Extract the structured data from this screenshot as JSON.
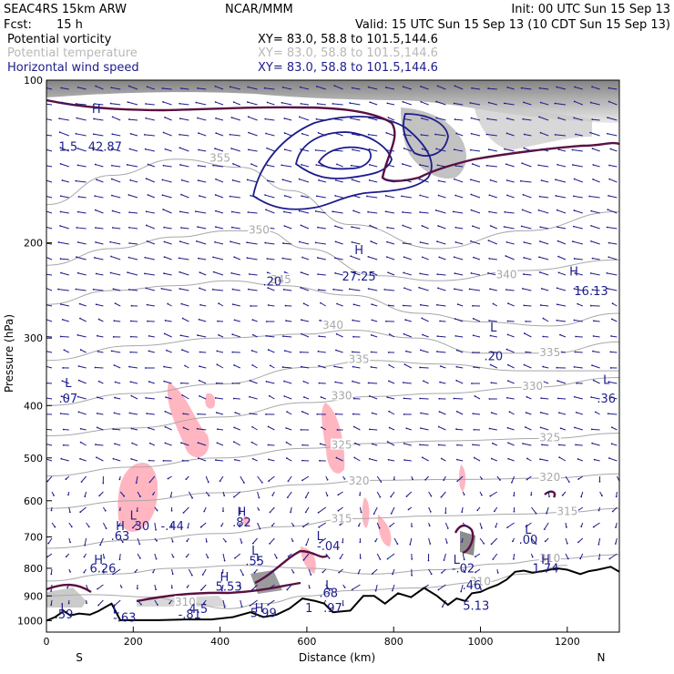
{
  "header": {
    "model": "SEAC4RS 15km ARW",
    "agency": "NCAR/MMM",
    "init": "Init: 00 UTC Sun 15 Sep 13",
    "fcst_label": "Fcst:",
    "fcst_value": "15 h",
    "valid": "Valid: 15 UTC Sun 15 Sep 13 (10 CDT Sun 15 Sep 13)"
  },
  "fields": [
    {
      "name": "Potential vorticity",
      "xy": "XY=  83.0, 58.8 to 101.5,144.6",
      "color": "#000000"
    },
    {
      "name": "Potential temperature",
      "xy": "XY=  83.0, 58.8 to 101.5,144.6",
      "color": "#b8b8b8"
    },
    {
      "name": "Horizontal wind speed",
      "xy": "XY=  83.0, 58.8 to 101.5,144.6",
      "color": "#1c1c8c"
    }
  ],
  "colors": {
    "pv": "#5a1040",
    "theta": "#a8a8a8",
    "wind": "#1c1c8c",
    "terrain": "#000000",
    "pink": "#ffb6c1"
  },
  "chart_data": {
    "type": "contour-cross-section",
    "xlabel": "Distance (km)",
    "ylabel": "Pressure (hPa)",
    "xlim": [
      0,
      1320
    ],
    "ylim": [
      1050,
      100
    ],
    "y_log": true,
    "xticks": [
      0,
      200,
      400,
      600,
      800,
      1000,
      1200
    ],
    "yticks": [
      100,
      200,
      300,
      400,
      500,
      600,
      700,
      800,
      900,
      1000
    ],
    "end_labels": {
      "left": "S",
      "right": "N"
    },
    "terrain": [
      [
        0,
        1000
      ],
      [
        20,
        985
      ],
      [
        40,
        960
      ],
      [
        55,
        978
      ],
      [
        75,
        970
      ],
      [
        100,
        975
      ],
      [
        120,
        960
      ],
      [
        135,
        945
      ],
      [
        150,
        930
      ],
      [
        170,
        998
      ],
      [
        200,
        998
      ],
      [
        260,
        998
      ],
      [
        320,
        995
      ],
      [
        380,
        995
      ],
      [
        430,
        985
      ],
      [
        470,
        965
      ],
      [
        500,
        985
      ],
      [
        530,
        975
      ],
      [
        560,
        950
      ],
      [
        590,
        910
      ],
      [
        620,
        920
      ],
      [
        640,
        930
      ],
      [
        660,
        965
      ],
      [
        700,
        958
      ],
      [
        730,
        900
      ],
      [
        755,
        900
      ],
      [
        780,
        930
      ],
      [
        810,
        890
      ],
      [
        840,
        905
      ],
      [
        870,
        870
      ],
      [
        900,
        900
      ],
      [
        925,
        935
      ],
      [
        945,
        910
      ],
      [
        965,
        920
      ],
      [
        980,
        890
      ],
      [
        1000,
        885
      ],
      [
        1020,
        870
      ],
      [
        1040,
        858
      ],
      [
        1060,
        840
      ],
      [
        1080,
        812
      ],
      [
        1100,
        808
      ],
      [
        1120,
        815
      ],
      [
        1150,
        808
      ],
      [
        1175,
        800
      ],
      [
        1200,
        805
      ],
      [
        1230,
        820
      ],
      [
        1250,
        810
      ],
      [
        1270,
        805
      ],
      [
        1300,
        795
      ],
      [
        1320,
        812
      ]
    ],
    "theta_contours": [
      {
        "value": "355",
        "label_at": [
          400,
          140
        ]
      },
      {
        "value": "350",
        "label_at": [
          490,
          190
        ]
      },
      {
        "value": "345",
        "label_at": [
          540,
          235
        ]
      },
      {
        "value": "340",
        "label_at": [
          660,
          285
        ]
      },
      {
        "value": "340",
        "label_at": [
          1060,
          230
        ]
      },
      {
        "value": "335",
        "label_at": [
          720,
          330
        ]
      },
      {
        "value": "335",
        "label_at": [
          1160,
          320
        ]
      },
      {
        "value": "330",
        "label_at": [
          680,
          385
        ]
      },
      {
        "value": "330",
        "label_at": [
          1120,
          370
        ]
      },
      {
        "value": "325",
        "label_at": [
          680,
          475
        ]
      },
      {
        "value": "325",
        "label_at": [
          1160,
          460
        ]
      },
      {
        "value": "320",
        "label_at": [
          720,
          553
        ]
      },
      {
        "value": "320",
        "label_at": [
          1160,
          545
        ]
      },
      {
        "value": "315",
        "label_at": [
          680,
          650
        ]
      },
      {
        "value": "315",
        "label_at": [
          1200,
          630
        ]
      },
      {
        "value": "310",
        "label_at": [
          1160,
          770
        ]
      },
      {
        "value": "310",
        "label_at": [
          1000,
          850
        ]
      },
      {
        "value": "310",
        "label_at": [
          320,
          928
        ]
      }
    ],
    "annotations": [
      {
        "text": "1.5",
        "x": 50,
        "y": 135
      },
      {
        "text": "H",
        "x": 115,
        "y": 115
      },
      {
        "text": "42.87",
        "x": 135,
        "y": 135
      },
      {
        "text": "H",
        "x": 720,
        "y": 210
      },
      {
        "text": "27.25",
        "x": 720,
        "y": 235
      },
      {
        "text": ".20",
        "x": 520,
        "y": 240
      },
      {
        "text": "L",
        "x": 1030,
        "y": 292
      },
      {
        "text": ".20",
        "x": 1030,
        "y": 330
      },
      {
        "text": "H",
        "x": 1215,
        "y": 230
      },
      {
        "text": "16.13",
        "x": 1255,
        "y": 250
      },
      {
        "text": "L",
        "x": 50,
        "y": 370
      },
      {
        "text": ".07",
        "x": 50,
        "y": 395
      },
      {
        "text": "L",
        "x": 1290,
        "y": 365
      },
      {
        "text": ".36",
        "x": 1290,
        "y": 395
      },
      {
        "text": "L",
        "x": 200,
        "y": 650
      },
      {
        "text": "H",
        "x": 170,
        "y": 680
      },
      {
        "text": "30",
        "x": 220,
        "y": 680
      },
      {
        "text": "-.44",
        "x": 290,
        "y": 680
      },
      {
        "text": ".63",
        "x": 170,
        "y": 710
      },
      {
        "text": "H",
        "x": 450,
        "y": 640
      },
      {
        "text": ".82",
        "x": 450,
        "y": 670
      },
      {
        "text": "L",
        "x": 630,
        "y": 710
      },
      {
        "text": "-.04",
        "x": 650,
        "y": 740
      },
      {
        "text": "L",
        "x": 1110,
        "y": 690
      },
      {
        "text": ".00",
        "x": 1110,
        "y": 720
      },
      {
        "text": "L",
        "x": 480,
        "y": 755
      },
      {
        "text": ".55",
        "x": 480,
        "y": 790
      },
      {
        "text": "H",
        "x": 120,
        "y": 785
      },
      {
        "text": "6.26",
        "x": 130,
        "y": 815
      },
      {
        "text": "L",
        "x": 945,
        "y": 785
      },
      {
        "text": "-.02",
        "x": 960,
        "y": 815
      },
      {
        "text": "H",
        "x": 1150,
        "y": 785
      },
      {
        "text": "1.74",
        "x": 1150,
        "y": 815
      },
      {
        "text": "H",
        "x": 410,
        "y": 845
      },
      {
        "text": "5.53",
        "x": 420,
        "y": 880
      },
      {
        "text": "L",
        "x": 650,
        "y": 875
      },
      {
        "text": ".68",
        "x": 650,
        "y": 905
      },
      {
        "text": ".46",
        "x": 980,
        "y": 875
      },
      {
        "text": "5.13",
        "x": 990,
        "y": 955
      },
      {
        "text": "L",
        "x": 40,
        "y": 965
      },
      {
        "text": ".59",
        "x": 40,
        "y": 990
      },
      {
        "text": "L",
        "x": 160,
        "y": 970
      },
      {
        "text": "-.63",
        "x": 180,
        "y": 1005
      },
      {
        "text": "4.5",
        "x": 350,
        "y": 968
      },
      {
        "text": "-.81",
        "x": 330,
        "y": 990
      },
      {
        "text": "H",
        "x": 490,
        "y": 965
      },
      {
        "text": "5.99",
        "x": 500,
        "y": 985
      },
      {
        "text": "1",
        "x": 605,
        "y": 965
      },
      {
        "text": ".97",
        "x": 660,
        "y": 965
      }
    ]
  }
}
